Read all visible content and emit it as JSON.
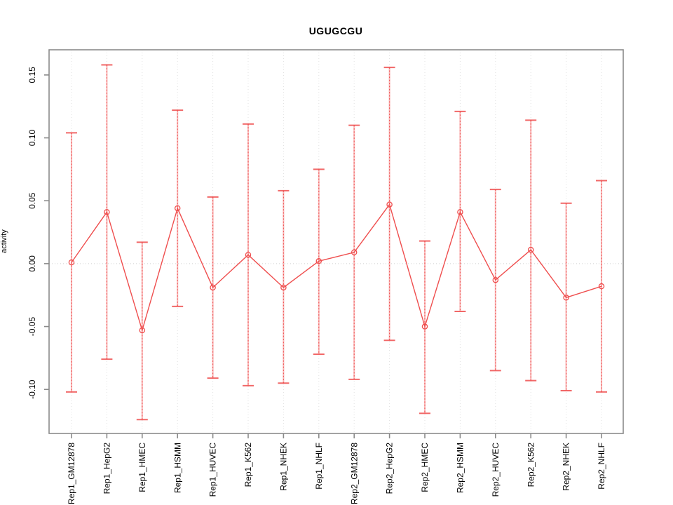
{
  "title": "UGUGCGU",
  "axes": {
    "ylabel": "activity",
    "ytick_labels": [
      "-0.10",
      "-0.05",
      "0.00",
      "0.05",
      "0.10",
      "0.15"
    ]
  },
  "chart_data": {
    "type": "line",
    "title": "UGUGCGU",
    "xlabel": "",
    "ylabel": "activity",
    "categories": [
      "Rep1_GM12878",
      "Rep1_HepG2",
      "Rep1_HMEC",
      "Rep1_HSMM",
      "Rep1_HUVEC",
      "Rep1_K562",
      "Rep1_NHEK",
      "Rep1_NHLF",
      "Rep2_GM12878",
      "Rep2_HepG2",
      "Rep2_HMEC",
      "Rep2_HSMM",
      "Rep2_HUVEC",
      "Rep2_K562",
      "Rep2_NHEK",
      "Rep2_NHLF"
    ],
    "series": [
      {
        "name": "activity",
        "values": [
          0.001,
          0.041,
          -0.053,
          0.044,
          -0.019,
          0.007,
          -0.019,
          0.002,
          0.009,
          0.047,
          -0.05,
          0.041,
          -0.013,
          0.011,
          -0.027,
          -0.018
        ],
        "lower": [
          -0.102,
          -0.076,
          -0.124,
          -0.034,
          -0.091,
          -0.097,
          -0.095,
          -0.072,
          -0.092,
          -0.061,
          -0.119,
          -0.038,
          -0.085,
          -0.093,
          -0.101,
          -0.102
        ],
        "upper": [
          0.104,
          0.158,
          0.017,
          0.122,
          0.053,
          0.111,
          0.058,
          0.075,
          0.11,
          0.156,
          0.018,
          0.121,
          0.059,
          0.114,
          0.048,
          0.066
        ]
      }
    ],
    "ylim": [
      -0.135,
      0.17
    ],
    "yticks": [
      -0.1,
      -0.05,
      0.0,
      0.05,
      0.1,
      0.15
    ],
    "grid": "vertical-dotted",
    "zero_line": true,
    "error_bars": true,
    "point_style": "open-circle",
    "legend": "none",
    "colors": {
      "series": "#ef4e4e",
      "series_pale": "#f9a6a6",
      "box": "#8a8a8a",
      "grid": "#e0e0e0",
      "zero_line": "#d9d9d9",
      "text": "#000000"
    }
  }
}
